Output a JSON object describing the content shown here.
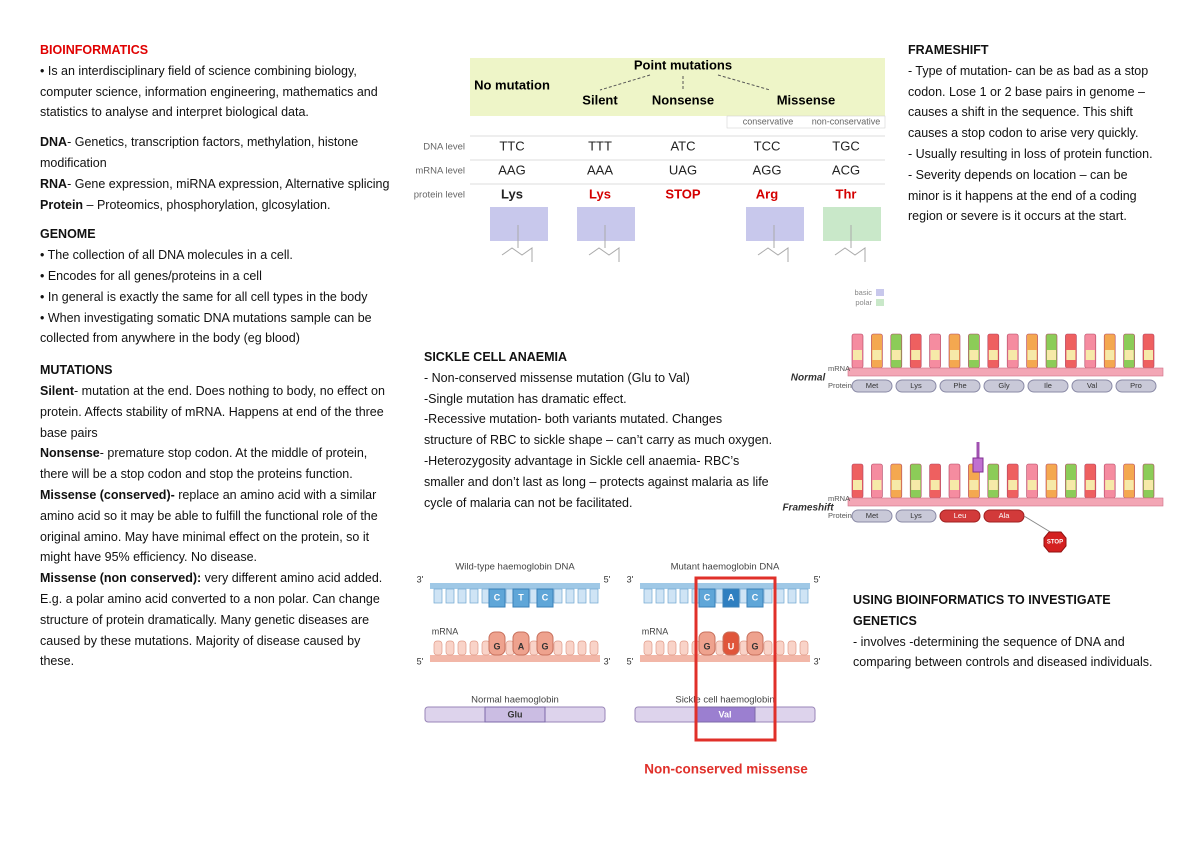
{
  "left": {
    "title": "BIOINFORMATICS",
    "intro": "• Is an interdisciplinary field of science combining biology, computer science, information engineering, mathematics and statistics to analyse and interpret biological data.",
    "omics": [
      {
        "term": "DNA",
        "text": "- Genetics, transcription factors, methylation, histone modification"
      },
      {
        "term": "RNA",
        "text": "- Gene expression, miRNA expression, Alternative splicing"
      },
      {
        "term": "Protein",
        "text": " – Proteomics, phosphorylation, glcosylation."
      }
    ],
    "genome": {
      "heading": "GENOME",
      "items": [
        "• The collection of all DNA molecules in a cell.",
        "• Encodes for all genes/proteins in a cell",
        "• In general is exactly the same for all cell types in the body",
        "• When investigating somatic DNA mutations sample can be collected from anywhere in the body (eg blood)"
      ]
    },
    "mutations": {
      "heading": "MUTATIONS",
      "items": [
        {
          "term": "Silent",
          "text": "- mutation at the end. Does nothing to body, no effect on protein. Affects stability of mRNA. Happens at end of the three base pairs"
        },
        {
          "term": "Nonsense",
          "text": "- premature stop codon. At the middle of protein, there will be a stop codon and stop the proteins function."
        },
        {
          "term": "Missense (conserved)-",
          "text": " replace an amino acid with a similar amino acid so it may be able to fulfill the functional role of the original amino. May have minimal effect on the protein, so it might have 95% efficiency. No disease."
        },
        {
          "term": "Missense (non conserved):",
          "text": " very different amino acid added. E.g. a polar amino acid converted to a non polar. Can change structure of protein dramatically. Many genetic diseases are caused by these mutations. Majority of disease caused by these."
        }
      ]
    }
  },
  "point_mutations": {
    "title": "Point mutations",
    "columns": [
      "No mutation",
      "Silent",
      "Nonsense",
      "Missense"
    ],
    "subcolumns": [
      "conservative",
      "non-conservative"
    ],
    "row_labels": [
      "DNA level",
      "mRNA level",
      "protein level"
    ],
    "rows": [
      [
        "TTC",
        "TTT",
        "ATC",
        "TCC",
        "TGC"
      ],
      [
        "AAG",
        "AAA",
        "UAG",
        "AGG",
        "ACG"
      ],
      [
        "Lys",
        "Lys",
        "STOP",
        "Arg",
        "Thr"
      ]
    ],
    "legend": [
      "basic",
      "polar"
    ]
  },
  "sickle": {
    "heading": "SICKLE CELL ANAEMIA",
    "lines": [
      "- Non-conserved missense mutation (Glu to Val)",
      "-Single mutation has dramatic effect.",
      "-Recessive mutation- both variants mutated. Changes structure of RBC to sickle shape – can’t carry as much oxygen.",
      "-Heterozygosity advantage in Sickle cell anaemia- RBC’s smaller and don’t last as long – protects against malaria as life cycle of malaria can not be facilitated."
    ]
  },
  "haemoglobin": {
    "panels": [
      {
        "dna_title": "Wild-type haemoglobin DNA",
        "dna_bases": [
          "C",
          "T",
          "C"
        ],
        "mrna_bases": [
          "G",
          "A",
          "G"
        ],
        "protein_title": "Normal haemoglobin",
        "amino_acid": "Glu"
      },
      {
        "dna_title": "Mutant haemoglobin DNA",
        "dna_bases": [
          "C",
          "A",
          "C"
        ],
        "mrna_bases": [
          "G",
          "U",
          "G"
        ],
        "protein_title": "Sickle cell haemoglobin",
        "amino_acid": "Val"
      }
    ],
    "three_prime": "3'",
    "five_prime": "5'",
    "mrna": "mRNA",
    "caption": "Non-conserved missense"
  },
  "frameshift": {
    "heading": "FRAMESHIFT",
    "lines": [
      "- Type of mutation- can be as bad as a stop codon. Lose 1 or 2 base pairs in genome – causes a shift in the sequence. This shift causes a stop codon to arise very quickly.",
      "- Usually resulting in loss of protein function.",
      "- Severity depends on location – can be minor is it happens at the end of a coding region or severe is it occurs at the start."
    ]
  },
  "frameshift_diagram": {
    "mrna": "mRNA",
    "protein": "Protein",
    "normal": {
      "label": "Normal",
      "amino_acids": [
        "Met",
        "Lys",
        "Phe",
        "Gly",
        "Ile",
        "Val",
        "Pro"
      ]
    },
    "shifted": {
      "label": "Frameshift",
      "amino_acids": [
        "Met",
        "Lys",
        "Leu",
        "Ala"
      ],
      "stop": "STOP"
    }
  },
  "using": {
    "heading": "USING BIOINFORMATICS TO INVESTIGATE GENETICS",
    "text": "- involves -determining the sequence of DNA and comparing between controls and diseased individuals."
  }
}
